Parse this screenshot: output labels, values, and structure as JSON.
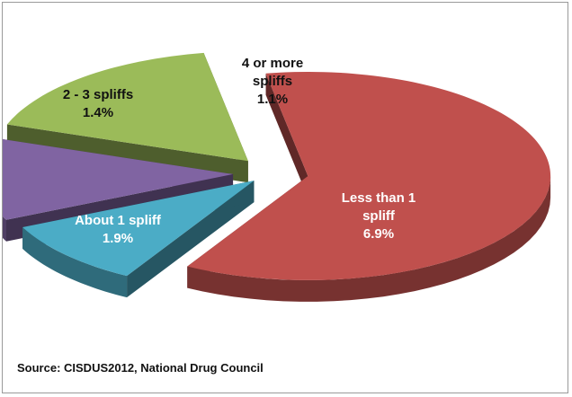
{
  "chart_data": {
    "type": "pie",
    "style": "3d-exploded",
    "title": "",
    "slices": [
      {
        "label": "Less than 1 spliff",
        "label_lines": [
          "Less than 1",
          "spliff"
        ],
        "value": 6.9,
        "value_text": "6.9%",
        "color": "#c0504d"
      },
      {
        "label": "4 or more spliffs",
        "label_lines": [
          "4 or more",
          "spliffs"
        ],
        "value": 1.1,
        "value_text": "1.1%",
        "color": "#4bacc6"
      },
      {
        "label": "2 - 3 spliffs",
        "label_lines": [
          "2 - 3 spliffs"
        ],
        "value": 1.4,
        "value_text": "1.4%",
        "color": "#8064a2"
      },
      {
        "label": "About 1 spliff",
        "label_lines": [
          "About 1 spliff"
        ],
        "value": 1.9,
        "value_text": "1.9%",
        "color": "#9bbb59"
      }
    ]
  },
  "source": "Source: CISDUS2012,  National Drug Council"
}
